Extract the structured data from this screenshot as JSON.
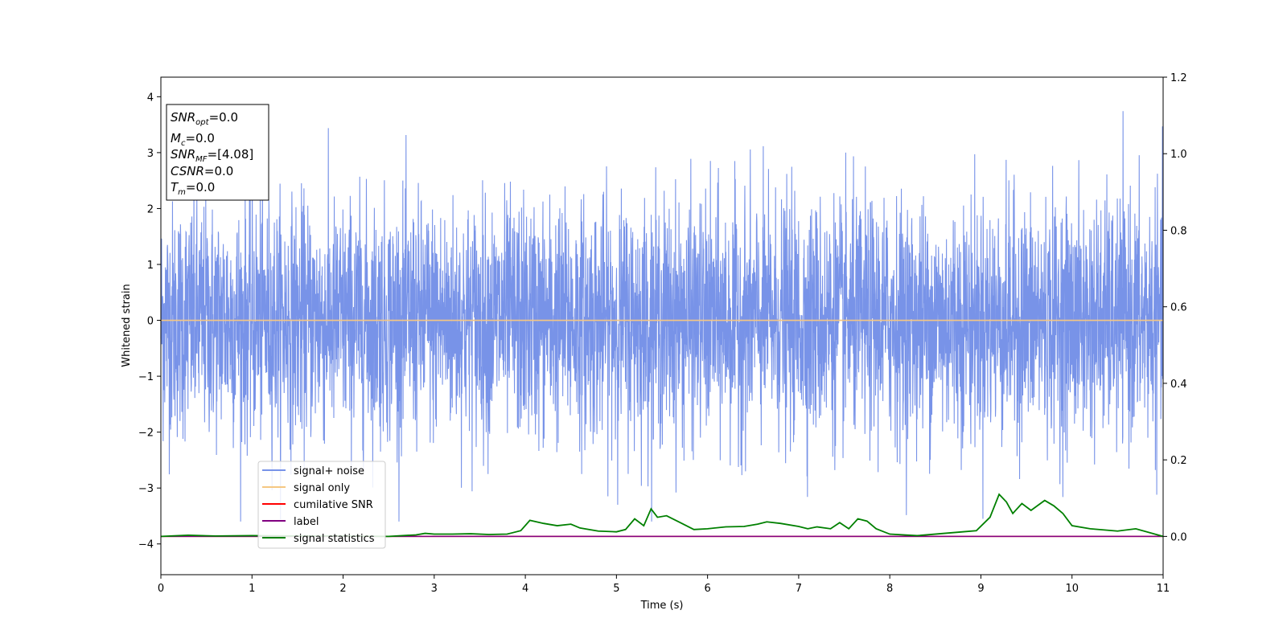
{
  "chart_data": {
    "type": "line",
    "xlabel": "Time (s)",
    "ylabel": "Whitened strain",
    "xlim": [
      0,
      11
    ],
    "ylim": [
      -4.55,
      4.35
    ],
    "y2lim": [
      -0.1,
      1.2
    ],
    "x_ticks": [
      "0",
      "1",
      "2",
      "3",
      "4",
      "5",
      "6",
      "7",
      "8",
      "9",
      "10",
      "11"
    ],
    "y_ticks": [
      "4",
      "3",
      "2",
      "1",
      "0",
      "−1",
      "−2",
      "−3",
      "−4"
    ],
    "y2_ticks": [
      "1.2",
      "1.0",
      "0.8",
      "0.6",
      "0.4",
      "0.2",
      "0.0"
    ],
    "grid": false,
    "colors": {
      "noise": "#7893e8",
      "signal_only": "#f5c782",
      "cumulative_snr": "#ff0000",
      "label": "#800080",
      "signal_statistics": "#008000"
    },
    "info_box": {
      "snr_opt": {
        "base": "SNR",
        "sub": "opt",
        "value": "=0.0"
      },
      "mc": {
        "base": "M",
        "sub": "c",
        "value": "=0.0"
      },
      "snr_mf": {
        "base": "SNR",
        "sub": "MF",
        "value": "=[4.08]"
      },
      "csnr": {
        "base": "CSNR",
        "value": "=0.0"
      },
      "tm": {
        "base": "T",
        "sub": "m",
        "value": "=0.0"
      }
    },
    "legend": {
      "placement": "lower-left",
      "entries": [
        "signal+ noise",
        "signal only",
        "cumilative SNR",
        "label",
        "signal statistics"
      ]
    },
    "series": [
      {
        "name": "signal+ noise",
        "axis": "left",
        "style": "noise",
        "x_range": [
          0,
          11
        ],
        "typical_band": [
          -2.2,
          2.3
        ],
        "envelope": [
          -3.6,
          3.9
        ]
      },
      {
        "name": "signal only",
        "axis": "left",
        "x": [
          0,
          11
        ],
        "values": [
          0,
          0
        ]
      },
      {
        "name": "cumilative SNR",
        "axis": "right",
        "x": [
          0,
          11
        ],
        "values": [
          0,
          0
        ]
      },
      {
        "name": "label",
        "axis": "right",
        "x": [
          0,
          11
        ],
        "values": [
          0,
          0
        ]
      },
      {
        "name": "signal statistics",
        "axis": "right",
        "x": [
          0,
          0.3,
          0.6,
          1.0,
          1.5,
          2.0,
          2.5,
          2.8,
          2.9,
          3.0,
          3.2,
          3.4,
          3.6,
          3.8,
          3.95,
          4.05,
          4.2,
          4.35,
          4.5,
          4.6,
          4.8,
          5.0,
          5.1,
          5.2,
          5.3,
          5.38,
          5.45,
          5.55,
          5.7,
          5.85,
          6.0,
          6.2,
          6.4,
          6.55,
          6.65,
          6.8,
          7.0,
          7.1,
          7.2,
          7.35,
          7.45,
          7.55,
          7.65,
          7.75,
          7.85,
          8.0,
          8.3,
          8.6,
          8.8,
          8.95,
          9.1,
          9.2,
          9.28,
          9.35,
          9.45,
          9.55,
          9.7,
          9.8,
          9.9,
          10.0,
          10.2,
          10.5,
          10.7,
          11.0
        ],
        "values": [
          0.0,
          0.003,
          0.001,
          0.002,
          0.001,
          0.001,
          0.0,
          0.004,
          0.008,
          0.006,
          0.006,
          0.007,
          0.005,
          0.006,
          0.015,
          0.042,
          0.034,
          0.028,
          0.032,
          0.022,
          0.014,
          0.012,
          0.018,
          0.046,
          0.028,
          0.072,
          0.05,
          0.054,
          0.036,
          0.018,
          0.02,
          0.025,
          0.026,
          0.032,
          0.038,
          0.034,
          0.026,
          0.02,
          0.025,
          0.02,
          0.036,
          0.02,
          0.046,
          0.04,
          0.02,
          0.006,
          0.002,
          0.008,
          0.012,
          0.015,
          0.05,
          0.11,
          0.09,
          0.06,
          0.086,
          0.068,
          0.094,
          0.08,
          0.06,
          0.028,
          0.02,
          0.014,
          0.02,
          0.0
        ]
      }
    ]
  }
}
